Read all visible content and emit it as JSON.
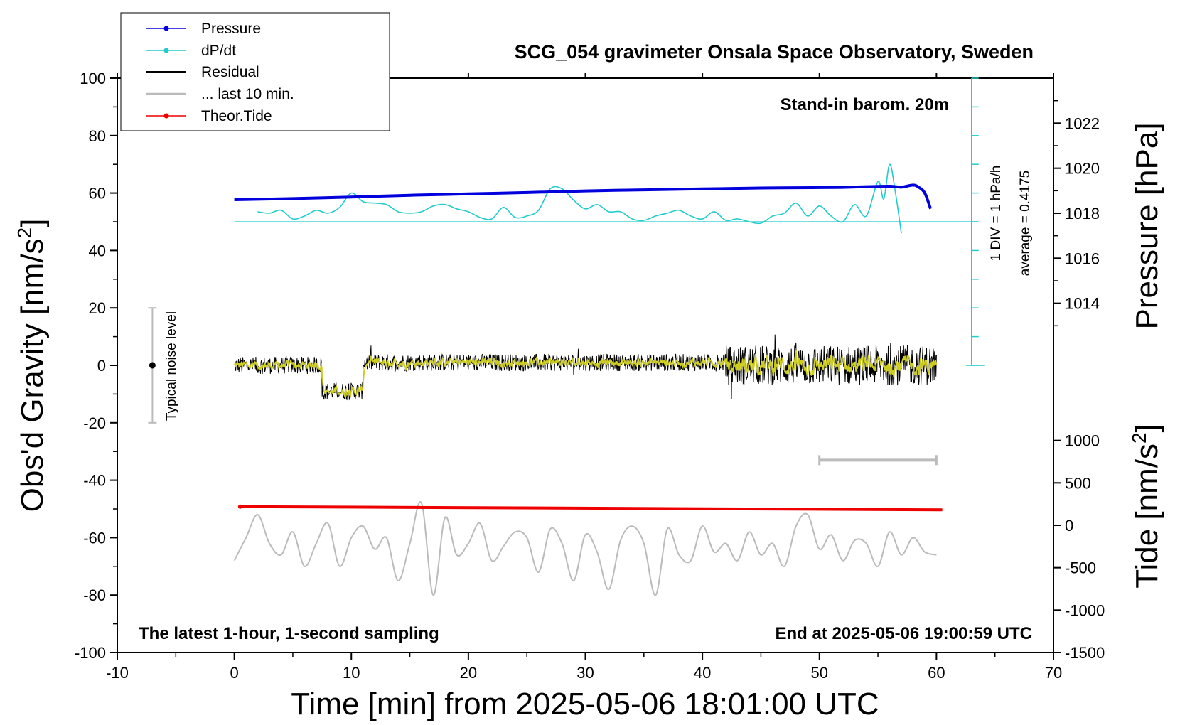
{
  "chart_data": {
    "type": "line",
    "title": "SCG_054 gravimeter Onsala Space Observatory, Sweden",
    "xlabel": "Time [min] from 2025-05-06 18:01:00 UTC",
    "ylabel_left": "Obs'd Gravity [nm/s",
    "ylabel_left_sup": "2",
    "ylabel_left_end": "]",
    "ylabel_right_pressure": "Pressure [hPa]",
    "ylabel_right_tide": "Tide [nm/s",
    "ylabel_right_tide_sup": "2",
    "ylabel_right_tide_end": "]",
    "xlim": [
      -10,
      70
    ],
    "ylim": [
      -100,
      100
    ],
    "xticks": [
      "-10",
      "0",
      "10",
      "20",
      "30",
      "40",
      "50",
      "60",
      "70"
    ],
    "yticks": [
      "-100",
      "-80",
      "-60",
      "-40",
      "-20",
      "0",
      "20",
      "40",
      "60",
      "80",
      "100"
    ],
    "pressure_axis": {
      "ticks": [
        "1014",
        "1016",
        "1018",
        "1020",
        "1022"
      ],
      "range_hpa": [
        1012,
        1024
      ]
    },
    "tide_axis": {
      "ticks": [
        "-1500",
        "-1000",
        "-500",
        "0",
        "500",
        "1000"
      ],
      "range": [
        -1500,
        1500
      ]
    },
    "annotations": {
      "barometer": "Stand-in barom. 20m",
      "footer_left": "The latest 1-hour, 1-second sampling",
      "footer_right": "End at 2025-05-06 19:00:59 UTC",
      "div_label": "1 DIV = 1 hPa/h",
      "average_label": "average = 0.4175",
      "noise_label": "Typical noise level"
    },
    "legend": {
      "placement": "top-left",
      "entries": [
        "Pressure",
        "dP/dt",
        "Residual",
        "... last 10 min.",
        "Theor.Tide"
      ]
    },
    "series": [
      {
        "name": "Pressure",
        "color": "#0000dd",
        "axis": "pressure_hpa",
        "x": [
          0,
          5,
          10,
          15,
          20,
          25,
          30,
          35,
          40,
          45,
          50,
          52,
          54,
          56,
          57,
          58,
          58.5,
          59,
          59.5
        ],
        "y": [
          1018.6,
          1018.65,
          1018.72,
          1018.8,
          1018.86,
          1018.92,
          1018.99,
          1019.04,
          1019.08,
          1019.12,
          1019.14,
          1019.15,
          1019.18,
          1019.2,
          1019.16,
          1019.25,
          1019.15,
          1018.9,
          1018.2
        ]
      },
      {
        "name": "dP/dt",
        "color": "#22cccc",
        "axis": "gravity_display",
        "average_line_y": 50,
        "x": [
          2,
          3,
          4,
          5,
          6,
          7,
          8,
          9,
          10,
          11,
          12,
          13,
          14,
          15,
          16,
          17,
          18,
          19,
          20,
          21,
          22,
          23,
          24,
          25,
          26,
          27,
          28,
          29,
          30,
          31,
          32,
          33,
          34,
          35,
          36,
          37,
          38,
          39,
          40,
          41,
          42,
          43,
          44,
          45,
          46,
          47,
          48,
          49,
          50,
          51,
          52,
          53,
          54,
          55,
          55.5,
          56,
          56.5,
          57
        ],
        "y": [
          53.5,
          53.0,
          54.0,
          51.0,
          52.0,
          54.0,
          53.0,
          55.0,
          60.0,
          57.0,
          56.5,
          56.0,
          53.5,
          53.0,
          53.5,
          55.5,
          56.0,
          54.5,
          53.5,
          51.5,
          51.0,
          55.0,
          51.5,
          52.0,
          54.0,
          61.5,
          61.5,
          57.5,
          54.5,
          56.0,
          53.5,
          53.5,
          51.0,
          50.5,
          52.0,
          53.0,
          54.0,
          52.0,
          51.0,
          53.5,
          50.5,
          51.0,
          50.0,
          49.5,
          52.0,
          53.0,
          56.5,
          52.0,
          55.5,
          52.0,
          50.0,
          56.0,
          52.0,
          64.0,
          58.0,
          70.0,
          60.0,
          46.0
        ]
      },
      {
        "name": "Residual",
        "color": "#000000",
        "smoothed_color": "#cccc22",
        "axis": "gravity",
        "segments": [
          {
            "x_start": 0,
            "x_end": 7.5,
            "level": 0,
            "amplitude": 3
          },
          {
            "x_start": 7.5,
            "x_end": 11,
            "level": -9,
            "amplitude": 3
          },
          {
            "x_start": 11,
            "x_end": 42,
            "level": 1,
            "amplitude": 3
          },
          {
            "x_start": 42,
            "x_end": 60,
            "level": 0,
            "amplitude": 7
          }
        ],
        "range": [
          -19,
          14
        ]
      },
      {
        "name": "... last 10 min.",
        "color": "#bbbbbb",
        "axis": "gravity",
        "x": [
          0,
          1,
          2,
          3,
          4,
          5,
          6,
          7,
          8,
          9,
          10,
          11,
          12,
          13,
          14,
          15,
          16,
          17,
          18,
          19,
          20,
          21,
          22,
          23,
          24,
          25,
          26,
          27,
          28,
          29,
          30,
          31,
          32,
          33,
          34,
          35,
          36,
          37,
          38,
          39,
          40,
          41,
          42,
          43,
          44,
          45,
          46,
          47,
          48,
          49,
          50,
          51,
          52,
          53,
          54,
          55,
          56,
          57,
          58,
          59,
          60
        ],
        "y": [
          -68,
          -60,
          -52,
          -62,
          -66,
          -58,
          -70,
          -62,
          -55,
          -70,
          -60,
          -56,
          -64,
          -60,
          -75,
          -62,
          -48,
          -80,
          -53,
          -66,
          -62,
          -55,
          -68,
          -63,
          -58,
          -60,
          -72,
          -57,
          -62,
          -75,
          -59,
          -65,
          -78,
          -61,
          -56,
          -62,
          -80,
          -57,
          -66,
          -68,
          -56,
          -65,
          -62,
          -68,
          -58,
          -66,
          -62,
          -70,
          -56,
          -52,
          -64,
          -59,
          -68,
          -61,
          -62,
          -70,
          -58,
          -66,
          -60,
          -65,
          -66
        ]
      },
      {
        "name": "Theor.Tide",
        "color": "#ee0000",
        "axis": "gravity",
        "x": [
          0.5,
          60.5
        ],
        "y": [
          -49.2,
          -50.3
        ]
      }
    ],
    "noise_bar": {
      "x": -7,
      "y_center": 0,
      "y_range": [
        -20,
        20
      ]
    },
    "window_bar": {
      "x_range": [
        50,
        60
      ],
      "y": -33
    }
  }
}
